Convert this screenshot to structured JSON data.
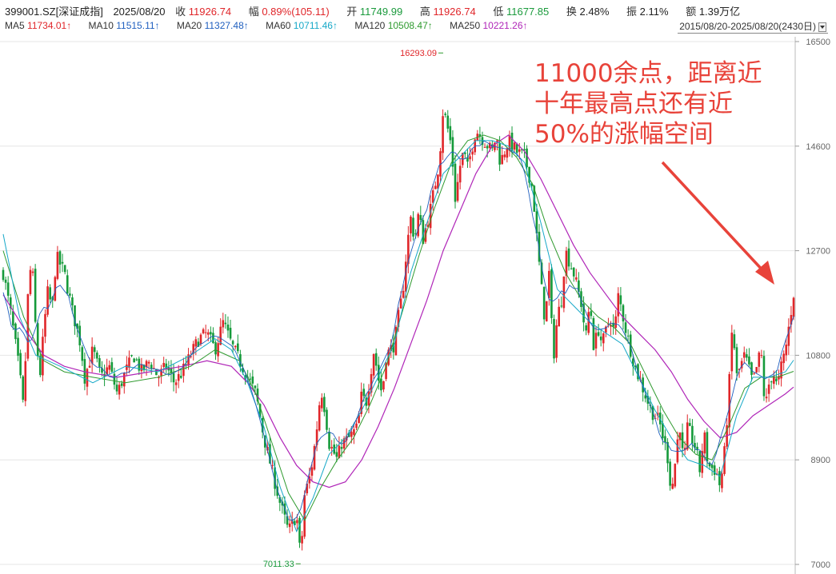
{
  "header": {
    "code": "399001.SZ[深证成指]",
    "date": "2025/08/20",
    "close_label": "收",
    "close": "11926.74",
    "chg_label": "幅",
    "chg": "0.89%(105.11)",
    "open_label": "开",
    "open": "11749.99",
    "high_label": "高",
    "high": "11926.74",
    "low_label": "低",
    "low": "11677.85",
    "turnover_label": "换",
    "turnover": "2.48%",
    "amp_label": "振",
    "amp": "2.11%",
    "amount_label": "额",
    "amount": "1.39万亿"
  },
  "ma": [
    {
      "label": "MA5",
      "value": "11734.01↑",
      "color": "#e0262a"
    },
    {
      "label": "MA10",
      "value": "11515.11↑",
      "color": "#1f5fbf"
    },
    {
      "label": "MA20",
      "value": "11327.48↑",
      "color": "#1f5fbf"
    },
    {
      "label": "MA60",
      "value": "10711.46↑",
      "color": "#16a8c8"
    },
    {
      "label": "MA120",
      "value": "10508.47↑",
      "color": "#2f9a2f"
    },
    {
      "label": "MA250",
      "value": "10221.26↑",
      "color": "#b026b8"
    }
  ],
  "range_label": "2015/08/20-2025/08/20(2430日)",
  "chart_data": {
    "type": "line",
    "series_kind": "candlestick",
    "x_range": [
      "2015/08/20",
      "2025/08/20"
    ],
    "trading_days": 2430,
    "y_ticks": [
      7000,
      8900,
      10800,
      12700,
      14600,
      16500
    ],
    "ylim": [
      7000,
      16500
    ],
    "grid": true,
    "max_label": "16293.09",
    "min_label": "7011.33",
    "annotation": [
      "11000余点，距离近",
      "十年最高点还有近",
      "50%的涨幅空间"
    ],
    "colors": {
      "up": "#e0262a",
      "down": "#159a3a",
      "annotation": "#e8433a",
      "grid": "#e6e6e6"
    },
    "close_path": [
      [
        0,
        12300
      ],
      [
        2,
        11500
      ],
      [
        4,
        10500
      ],
      [
        5,
        9800
      ],
      [
        6,
        11800
      ],
      [
        7,
        12600
      ],
      [
        8,
        11200
      ],
      [
        9,
        10400
      ],
      [
        10,
        11300
      ],
      [
        11,
        12000
      ],
      [
        12,
        11600
      ],
      [
        13,
        12600
      ],
      [
        15,
        12300
      ],
      [
        17,
        11600
      ],
      [
        19,
        11000
      ],
      [
        20,
        10400
      ],
      [
        22,
        10900
      ],
      [
        24,
        10400
      ],
      [
        26,
        10600
      ],
      [
        28,
        10100
      ],
      [
        30,
        10500
      ],
      [
        32,
        10800
      ],
      [
        34,
        10500
      ],
      [
        36,
        10700
      ],
      [
        38,
        10400
      ],
      [
        40,
        10600
      ],
      [
        42,
        10300
      ],
      [
        44,
        10500
      ],
      [
        46,
        10800
      ],
      [
        48,
        11100
      ],
      [
        50,
        11200
      ],
      [
        52,
        10900
      ],
      [
        54,
        11400
      ],
      [
        56,
        11000
      ],
      [
        58,
        10700
      ],
      [
        60,
        10400
      ],
      [
        62,
        10100
      ],
      [
        64,
        9300
      ],
      [
        66,
        8700
      ],
      [
        68,
        8100
      ],
      [
        70,
        7600
      ],
      [
        72,
        7900
      ],
      [
        73,
        7100
      ],
      [
        74,
        8300
      ],
      [
        75,
        8500
      ],
      [
        76,
        8900
      ],
      [
        77,
        9500
      ],
      [
        78,
        10200
      ],
      [
        79,
        9800
      ],
      [
        80,
        9200
      ],
      [
        82,
        8900
      ],
      [
        83,
        9200
      ],
      [
        85,
        9300
      ],
      [
        87,
        9500
      ],
      [
        88,
        10100
      ],
      [
        89,
        9900
      ],
      [
        90,
        10400
      ],
      [
        91,
        10900
      ],
      [
        92,
        10400
      ],
      [
        93,
        10100
      ],
      [
        94,
        10800
      ],
      [
        96,
        11000
      ],
      [
        97,
        11500
      ],
      [
        98,
        11900
      ],
      [
        99,
        12700
      ],
      [
        100,
        13300
      ],
      [
        101,
        12900
      ],
      [
        102,
        13400
      ],
      [
        103,
        12900
      ],
      [
        104,
        13200
      ],
      [
        105,
        13500
      ],
      [
        106,
        13900
      ],
      [
        107,
        14300
      ],
      [
        108,
        15300
      ],
      [
        110,
        14600
      ],
      [
        111,
        13600
      ],
      [
        112,
        14200
      ],
      [
        113,
        14500
      ],
      [
        114,
        14200
      ],
      [
        116,
        14900
      ],
      [
        118,
        14700
      ],
      [
        120,
        14500
      ],
      [
        121,
        14800
      ],
      [
        122,
        14300
      ],
      [
        124,
        14700
      ],
      [
        126,
        14500
      ],
      [
        128,
        14400
      ],
      [
        130,
        13800
      ],
      [
        131,
        12900
      ],
      [
        132,
        12100
      ],
      [
        133,
        11400
      ],
      [
        134,
        12300
      ],
      [
        135,
        10700
      ],
      [
        136,
        11500
      ],
      [
        137,
        11800
      ],
      [
        138,
        12700
      ],
      [
        140,
        12300
      ],
      [
        142,
        11700
      ],
      [
        143,
        11100
      ],
      [
        144,
        11800
      ],
      [
        145,
        10900
      ],
      [
        146,
        11300
      ],
      [
        147,
        11000
      ],
      [
        149,
        11500
      ],
      [
        150,
        11200
      ],
      [
        151,
        11900
      ],
      [
        153,
        11200
      ],
      [
        155,
        10600
      ],
      [
        157,
        10200
      ],
      [
        159,
        9800
      ],
      [
        161,
        9600
      ],
      [
        162,
        9300
      ],
      [
        163,
        9000
      ],
      [
        164,
        8300
      ],
      [
        165,
        8900
      ],
      [
        166,
        9600
      ],
      [
        167,
        8800
      ],
      [
        168,
        9500
      ],
      [
        170,
        9100
      ],
      [
        171,
        8700
      ],
      [
        172,
        9400
      ],
      [
        173,
        8800
      ],
      [
        175,
        8700
      ],
      [
        176,
        8400
      ],
      [
        177,
        9000
      ],
      [
        178,
        10000
      ],
      [
        179,
        11400
      ],
      [
        180,
        10400
      ],
      [
        182,
        10800
      ],
      [
        184,
        10300
      ],
      [
        186,
        10900
      ],
      [
        187,
        9800
      ],
      [
        188,
        10300
      ],
      [
        189,
        10500
      ],
      [
        190,
        10200
      ],
      [
        191,
        10600
      ],
      [
        192,
        10900
      ],
      [
        193,
        11400
      ],
      [
        194,
        11926.74
      ]
    ],
    "ma250_path": [
      [
        0,
        11900
      ],
      [
        5,
        11300
      ],
      [
        10,
        10800
      ],
      [
        15,
        10600
      ],
      [
        20,
        10500
      ],
      [
        28,
        10400
      ],
      [
        36,
        10500
      ],
      [
        44,
        10600
      ],
      [
        50,
        10700
      ],
      [
        56,
        10600
      ],
      [
        60,
        10300
      ],
      [
        64,
        9900
      ],
      [
        68,
        9300
      ],
      [
        72,
        8800
      ],
      [
        76,
        8500
      ],
      [
        80,
        8400
      ],
      [
        84,
        8500
      ],
      [
        88,
        8900
      ],
      [
        92,
        9500
      ],
      [
        96,
        10200
      ],
      [
        100,
        11000
      ],
      [
        104,
        11800
      ],
      [
        108,
        12700
      ],
      [
        112,
        13400
      ],
      [
        116,
        14100
      ],
      [
        120,
        14600
      ],
      [
        124,
        14800
      ],
      [
        128,
        14500
      ],
      [
        132,
        14000
      ],
      [
        136,
        13400
      ],
      [
        140,
        12800
      ],
      [
        144,
        12300
      ],
      [
        148,
        11900
      ],
      [
        152,
        11500
      ],
      [
        156,
        11200
      ],
      [
        160,
        10900
      ],
      [
        164,
        10500
      ],
      [
        168,
        10000
      ],
      [
        172,
        9600
      ],
      [
        176,
        9300
      ],
      [
        180,
        9400
      ],
      [
        184,
        9700
      ],
      [
        188,
        9900
      ],
      [
        192,
        10100
      ],
      [
        194,
        10221.26
      ]
    ],
    "ma120_path": [
      [
        0,
        12700
      ],
      [
        5,
        11500
      ],
      [
        10,
        10700
      ],
      [
        15,
        10500
      ],
      [
        22,
        10400
      ],
      [
        30,
        10300
      ],
      [
        38,
        10400
      ],
      [
        46,
        10600
      ],
      [
        52,
        10900
      ],
      [
        58,
        10700
      ],
      [
        62,
        10100
      ],
      [
        66,
        9200
      ],
      [
        70,
        8300
      ],
      [
        74,
        7800
      ],
      [
        78,
        8400
      ],
      [
        82,
        8900
      ],
      [
        86,
        9300
      ],
      [
        90,
        9900
      ],
      [
        94,
        10600
      ],
      [
        98,
        11600
      ],
      [
        102,
        12600
      ],
      [
        106,
        13500
      ],
      [
        110,
        14300
      ],
      [
        114,
        14700
      ],
      [
        118,
        14800
      ],
      [
        122,
        14700
      ],
      [
        126,
        14400
      ],
      [
        130,
        13900
      ],
      [
        134,
        13000
      ],
      [
        138,
        12300
      ],
      [
        142,
        11800
      ],
      [
        146,
        11500
      ],
      [
        150,
        11300
      ],
      [
        154,
        11000
      ],
      [
        158,
        10400
      ],
      [
        162,
        9800
      ],
      [
        166,
        9300
      ],
      [
        170,
        9000
      ],
      [
        174,
        8900
      ],
      [
        178,
        9500
      ],
      [
        182,
        10200
      ],
      [
        186,
        10400
      ],
      [
        190,
        10400
      ],
      [
        194,
        10508.47
      ]
    ],
    "ma60_path": [
      [
        0,
        13000
      ],
      [
        4,
        11500
      ],
      [
        8,
        10800
      ],
      [
        14,
        10600
      ],
      [
        22,
        10300
      ],
      [
        30,
        10600
      ],
      [
        38,
        10500
      ],
      [
        46,
        10800
      ],
      [
        52,
        11100
      ],
      [
        56,
        10900
      ],
      [
        60,
        10300
      ],
      [
        64,
        9500
      ],
      [
        68,
        8400
      ],
      [
        72,
        7600
      ],
      [
        76,
        8200
      ],
      [
        80,
        9000
      ],
      [
        84,
        9300
      ],
      [
        88,
        9800
      ],
      [
        92,
        10400
      ],
      [
        96,
        11000
      ],
      [
        100,
        12300
      ],
      [
        104,
        13200
      ],
      [
        108,
        14100
      ],
      [
        112,
        14400
      ],
      [
        116,
        14700
      ],
      [
        120,
        14700
      ],
      [
        124,
        14600
      ],
      [
        128,
        14300
      ],
      [
        132,
        13200
      ],
      [
        136,
        12000
      ],
      [
        140,
        11700
      ],
      [
        144,
        11400
      ],
      [
        148,
        11200
      ],
      [
        152,
        11000
      ],
      [
        156,
        10400
      ],
      [
        160,
        9800
      ],
      [
        164,
        9300
      ],
      [
        168,
        8900
      ],
      [
        172,
        8800
      ],
      [
        176,
        8600
      ],
      [
        180,
        9700
      ],
      [
        184,
        10400
      ],
      [
        188,
        10400
      ],
      [
        192,
        10500
      ],
      [
        194,
        10711.46
      ]
    ]
  }
}
